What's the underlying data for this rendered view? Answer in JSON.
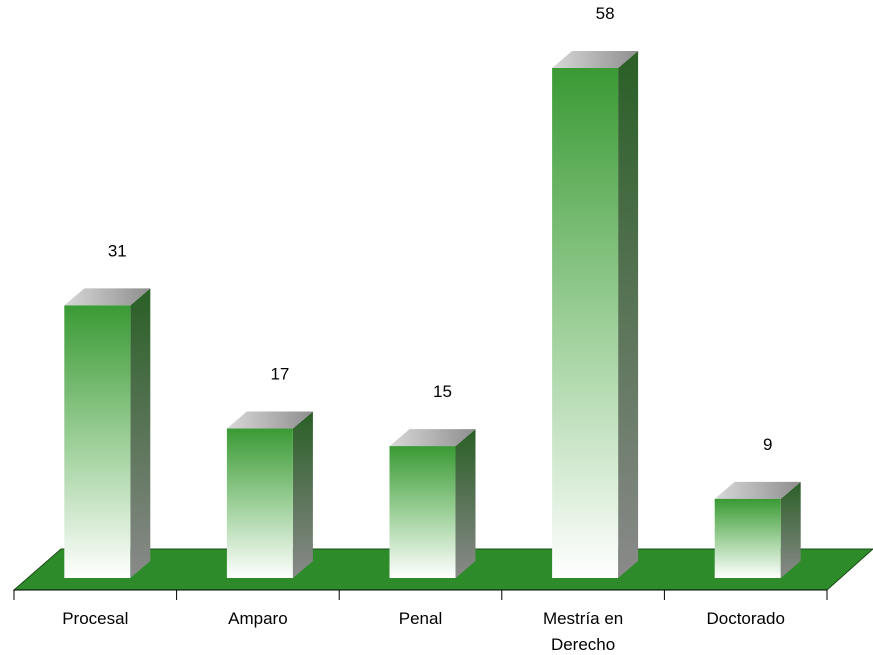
{
  "chart_data": {
    "type": "bar",
    "categories": [
      [
        "Procesal"
      ],
      [
        "Amparo"
      ],
      [
        "Penal"
      ],
      [
        "Mestría en",
        "Derecho"
      ],
      [
        "Doctorado"
      ]
    ],
    "values": [
      31,
      17,
      15,
      58,
      9
    ],
    "ylim": [
      0,
      58
    ],
    "grid": false,
    "legend": "none",
    "colors": {
      "bar_top": "#3a9a34",
      "bar_bottom": "#ffffff",
      "bar_side": "#2f6b2a",
      "bar_cap": "#b0b0b0",
      "floor": "#2e8b2a"
    }
  }
}
